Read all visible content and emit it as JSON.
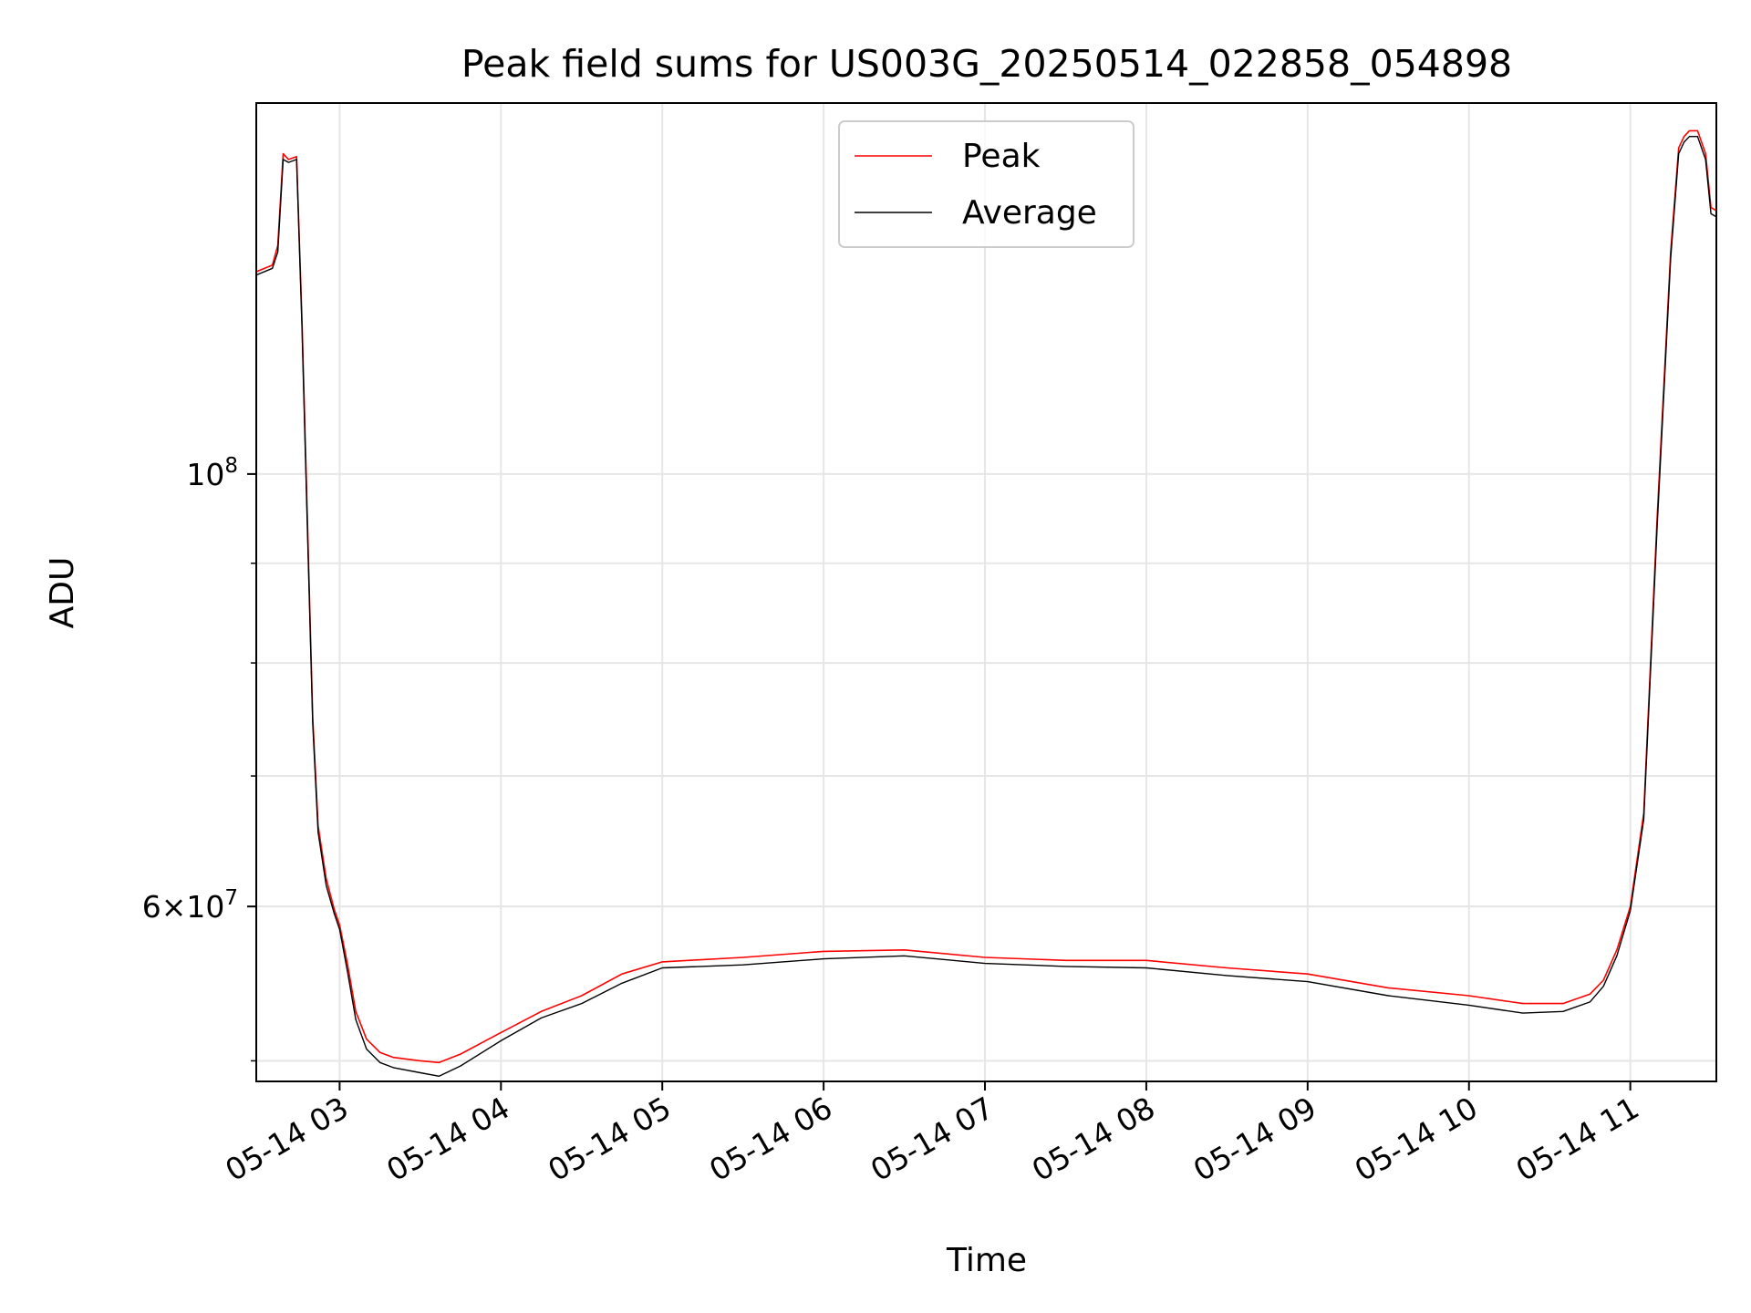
{
  "chart_data": {
    "type": "line",
    "title": "Peak field sums for US003G_20250514_022858_054898",
    "xlabel": "Time",
    "ylabel": "ADU",
    "xlim": [
      "2025-05-14T02:29:00",
      "2025-05-14T11:32:00"
    ],
    "ylim": [
      48800000,
      155000000
    ],
    "yscale": "log",
    "grid": true,
    "legend_position": "top-center",
    "x_ticks": [
      {
        "t": "2025-05-14T03:00:00",
        "label": "05-14 03"
      },
      {
        "t": "2025-05-14T04:00:00",
        "label": "05-14 04"
      },
      {
        "t": "2025-05-14T05:00:00",
        "label": "05-14 05"
      },
      {
        "t": "2025-05-14T06:00:00",
        "label": "05-14 06"
      },
      {
        "t": "2025-05-14T07:00:00",
        "label": "05-14 07"
      },
      {
        "t": "2025-05-14T08:00:00",
        "label": "05-14 08"
      },
      {
        "t": "2025-05-14T09:00:00",
        "label": "05-14 09"
      },
      {
        "t": "2025-05-14T10:00:00",
        "label": "05-14 10"
      },
      {
        "t": "2025-05-14T11:00:00",
        "label": "05-14 11"
      }
    ],
    "y_major_ticks": [
      {
        "value": 60000000,
        "mantissa": "6",
        "exp": "7"
      },
      {
        "value": 100000000,
        "mantissa": "",
        "exp": "8"
      }
    ],
    "y_minor_ticks": [
      50000000,
      60000000,
      70000000,
      80000000,
      90000000
    ],
    "series": [
      {
        "name": "Peak",
        "color": "#ff0000",
        "x": [
          "2025-05-14T02:29:00",
          "2025-05-14T02:35:00",
          "2025-05-14T02:37:00",
          "2025-05-14T02:39:00",
          "2025-05-14T02:41:00",
          "2025-05-14T02:44:00",
          "2025-05-14T02:46:00",
          "2025-05-14T02:48:00",
          "2025-05-14T02:50:00",
          "2025-05-14T02:52:00",
          "2025-05-14T02:55:00",
          "2025-05-14T02:58:00",
          "2025-05-14T03:00:00",
          "2025-05-14T03:03:00",
          "2025-05-14T03:06:00",
          "2025-05-14T03:10:00",
          "2025-05-14T03:15:00",
          "2025-05-14T03:20:00",
          "2025-05-14T03:30:00",
          "2025-05-14T03:37:00",
          "2025-05-14T03:45:00",
          "2025-05-14T04:00:00",
          "2025-05-14T04:15:00",
          "2025-05-14T04:30:00",
          "2025-05-14T04:45:00",
          "2025-05-14T05:00:00",
          "2025-05-14T05:30:00",
          "2025-05-14T06:00:00",
          "2025-05-14T06:30:00",
          "2025-05-14T07:00:00",
          "2025-05-14T07:30:00",
          "2025-05-14T08:00:00",
          "2025-05-14T08:30:00",
          "2025-05-14T09:00:00",
          "2025-05-14T09:30:00",
          "2025-05-14T10:00:00",
          "2025-05-14T10:20:00",
          "2025-05-14T10:35:00",
          "2025-05-14T10:45:00",
          "2025-05-14T10:50:00",
          "2025-05-14T10:55:00",
          "2025-05-14T11:00:00",
          "2025-05-14T11:05:00",
          "2025-05-14T11:10:00",
          "2025-05-14T11:15:00",
          "2025-05-14T11:18:00",
          "2025-05-14T11:20:00",
          "2025-05-14T11:22:00",
          "2025-05-14T11:25:00",
          "2025-05-14T11:28:00",
          "2025-05-14T11:30:00",
          "2025-05-14T11:32:00"
        ],
        "values": [
          127000000,
          128000000,
          131000000,
          146000000,
          145000000,
          145500000,
          120000000,
          95000000,
          75000000,
          66000000,
          62000000,
          59800000,
          58700000,
          56000000,
          53000000,
          51300000,
          50500000,
          50200000,
          50000000,
          49900000,
          50400000,
          51700000,
          53000000,
          54000000,
          55400000,
          56200000,
          56500000,
          56900000,
          57000000,
          56500000,
          56300000,
          56300000,
          55800000,
          55400000,
          54500000,
          54000000,
          53500000,
          53500000,
          54100000,
          55000000,
          57000000,
          60000000,
          67000000,
          95000000,
          130000000,
          147000000,
          149000000,
          150000000,
          150000000,
          146000000,
          137000000,
          136500000
        ]
      },
      {
        "name": "Average",
        "color": "#000000",
        "x": [
          "2025-05-14T02:29:00",
          "2025-05-14T02:35:00",
          "2025-05-14T02:37:00",
          "2025-05-14T02:39:00",
          "2025-05-14T02:41:00",
          "2025-05-14T02:44:00",
          "2025-05-14T02:46:00",
          "2025-05-14T02:48:00",
          "2025-05-14T02:50:00",
          "2025-05-14T02:52:00",
          "2025-05-14T02:55:00",
          "2025-05-14T02:58:00",
          "2025-05-14T03:00:00",
          "2025-05-14T03:03:00",
          "2025-05-14T03:06:00",
          "2025-05-14T03:10:00",
          "2025-05-14T03:15:00",
          "2025-05-14T03:20:00",
          "2025-05-14T03:30:00",
          "2025-05-14T03:37:00",
          "2025-05-14T03:45:00",
          "2025-05-14T04:00:00",
          "2025-05-14T04:15:00",
          "2025-05-14T04:30:00",
          "2025-05-14T04:45:00",
          "2025-05-14T05:00:00",
          "2025-05-14T05:30:00",
          "2025-05-14T06:00:00",
          "2025-05-14T06:30:00",
          "2025-05-14T07:00:00",
          "2025-05-14T07:30:00",
          "2025-05-14T08:00:00",
          "2025-05-14T08:30:00",
          "2025-05-14T09:00:00",
          "2025-05-14T09:30:00",
          "2025-05-14T10:00:00",
          "2025-05-14T10:20:00",
          "2025-05-14T10:35:00",
          "2025-05-14T10:45:00",
          "2025-05-14T10:50:00",
          "2025-05-14T10:55:00",
          "2025-05-14T11:00:00",
          "2025-05-14T11:05:00",
          "2025-05-14T11:10:00",
          "2025-05-14T11:15:00",
          "2025-05-14T11:18:00",
          "2025-05-14T11:20:00",
          "2025-05-14T11:22:00",
          "2025-05-14T11:25:00",
          "2025-05-14T11:28:00",
          "2025-05-14T11:30:00",
          "2025-05-14T11:32:00"
        ],
        "values": [
          126500000,
          127500000,
          130000000,
          145000000,
          144500000,
          145000000,
          119000000,
          94000000,
          74500000,
          65500000,
          61500000,
          59500000,
          58400000,
          55500000,
          52500000,
          50700000,
          49900000,
          49600000,
          49300000,
          49100000,
          49700000,
          51200000,
          52600000,
          53500000,
          54800000,
          55800000,
          56000000,
          56400000,
          56600000,
          56100000,
          55900000,
          55800000,
          55300000,
          54900000,
          54000000,
          53400000,
          52900000,
          53000000,
          53600000,
          54600000,
          56600000,
          59700000,
          66500000,
          94000000,
          129000000,
          146000000,
          148000000,
          149000000,
          149000000,
          145000000,
          136000000,
          135500000
        ]
      }
    ]
  }
}
